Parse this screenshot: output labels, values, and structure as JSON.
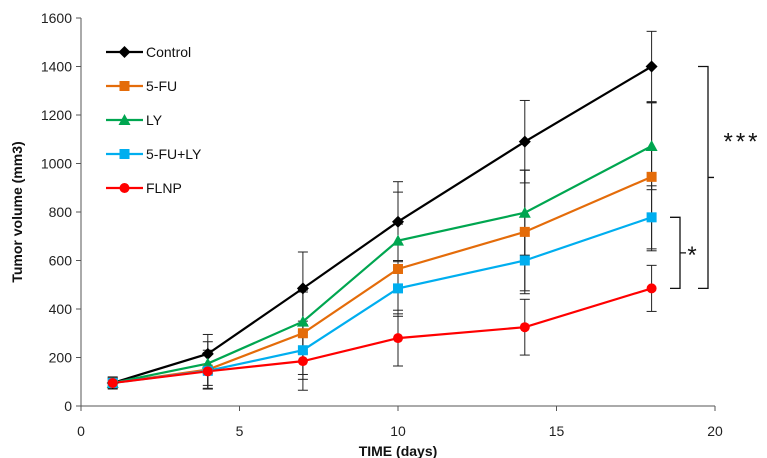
{
  "chart_data": {
    "type": "line",
    "title": "",
    "xlabel": "TIME (days)",
    "ylabel": "Tumor volume (mm3)",
    "xlim": [
      0,
      20
    ],
    "ylim": [
      0,
      1600
    ],
    "xticks": [
      0,
      5,
      10,
      15,
      20
    ],
    "yticks": [
      0,
      200,
      400,
      600,
      800,
      1000,
      1200,
      1400,
      1600
    ],
    "grid": false,
    "legend_position": "top-left",
    "x": [
      1,
      4,
      7,
      10,
      14,
      18
    ],
    "series": [
      {
        "name": "Control",
        "color": "#000000",
        "marker": "diamond",
        "values": [
          95,
          215,
          485,
          760,
          1090,
          1400
        ],
        "errors": [
          25,
          80,
          150,
          165,
          170,
          145
        ]
      },
      {
        "name": "5-FU",
        "color": "#E46C0A",
        "marker": "square",
        "values": [
          95,
          150,
          300,
          565,
          718,
          945
        ],
        "errors": [
          20,
          80,
          170,
          185,
          255,
          305
        ]
      },
      {
        "name": "LY",
        "color": "#00A650",
        "marker": "triangle",
        "values": [
          95,
          175,
          348,
          682,
          797,
          1072
        ],
        "errors": [
          20,
          90,
          130,
          200,
          175,
          180
        ]
      },
      {
        "name": "5-FU+LY",
        "color": "#00AEEF",
        "marker": "square",
        "values": [
          95,
          145,
          230,
          485,
          600,
          778
        ],
        "errors": [
          20,
          75,
          120,
          115,
          125,
          130
        ]
      },
      {
        "name": "FLNP",
        "color": "#FF0000",
        "marker": "circle",
        "values": [
          95,
          143,
          185,
          280,
          325,
          485
        ],
        "errors": [
          20,
          70,
          120,
          115,
          115,
          95
        ]
      }
    ],
    "annotations": [
      {
        "text": "***",
        "from": 1400,
        "to": 485
      },
      {
        "text": "*",
        "from": 778,
        "to": 485
      }
    ]
  }
}
